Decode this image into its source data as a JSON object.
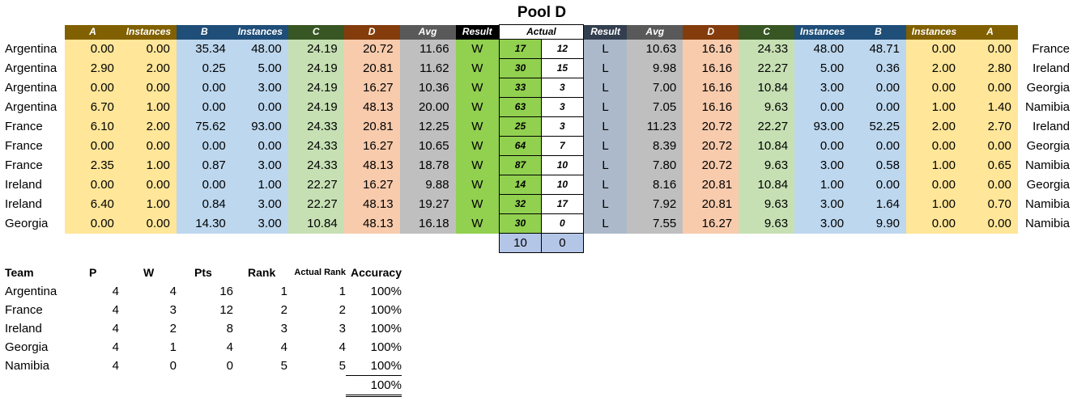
{
  "title": "Pool D",
  "headers": {
    "left": [
      "A",
      "Instances",
      "B",
      "Instances",
      "C",
      "D",
      "Avg",
      "Result"
    ],
    "actual": "Actual",
    "right": [
      "Result",
      "Avg",
      "D",
      "C",
      "Instances",
      "B",
      "Instances",
      "A"
    ]
  },
  "matches": [
    {
      "home": "Argentina",
      "hA": "0.00",
      "hAi": "0.00",
      "hB": "35.34",
      "hBi": "48.00",
      "hC": "24.19",
      "hD": "20.72",
      "hAvg": "11.66",
      "hRes": "W",
      "s1": "17",
      "s2": "12",
      "aRes": "L",
      "aAvg": "10.63",
      "aD": "16.16",
      "aC": "24.33",
      "aBi": "48.00",
      "aB": "48.71",
      "aAi": "0.00",
      "aA": "0.00",
      "away": "France"
    },
    {
      "home": "Argentina",
      "hA": "2.90",
      "hAi": "2.00",
      "hB": "0.25",
      "hBi": "5.00",
      "hC": "24.19",
      "hD": "20.81",
      "hAvg": "11.62",
      "hRes": "W",
      "s1": "30",
      "s2": "15",
      "aRes": "L",
      "aAvg": "9.98",
      "aD": "16.16",
      "aC": "22.27",
      "aBi": "5.00",
      "aB": "0.36",
      "aAi": "2.00",
      "aA": "2.80",
      "away": "Ireland"
    },
    {
      "home": "Argentina",
      "hA": "0.00",
      "hAi": "0.00",
      "hB": "0.00",
      "hBi": "3.00",
      "hC": "24.19",
      "hD": "16.27",
      "hAvg": "10.36",
      "hRes": "W",
      "s1": "33",
      "s2": "3",
      "aRes": "L",
      "aAvg": "7.00",
      "aD": "16.16",
      "aC": "10.84",
      "aBi": "3.00",
      "aB": "0.00",
      "aAi": "0.00",
      "aA": "0.00",
      "away": "Georgia"
    },
    {
      "home": "Argentina",
      "hA": "6.70",
      "hAi": "1.00",
      "hB": "0.00",
      "hBi": "0.00",
      "hC": "24.19",
      "hD": "48.13",
      "hAvg": "20.00",
      "hRes": "W",
      "s1": "63",
      "s2": "3",
      "aRes": "L",
      "aAvg": "7.05",
      "aD": "16.16",
      "aC": "9.63",
      "aBi": "0.00",
      "aB": "0.00",
      "aAi": "1.00",
      "aA": "1.40",
      "away": "Namibia"
    },
    {
      "home": "France",
      "hA": "6.10",
      "hAi": "2.00",
      "hB": "75.62",
      "hBi": "93.00",
      "hC": "24.33",
      "hD": "20.81",
      "hAvg": "12.25",
      "hRes": "W",
      "s1": "25",
      "s2": "3",
      "aRes": "L",
      "aAvg": "11.23",
      "aD": "20.72",
      "aC": "22.27",
      "aBi": "93.00",
      "aB": "52.25",
      "aAi": "2.00",
      "aA": "2.70",
      "away": "Ireland"
    },
    {
      "home": "France",
      "hA": "0.00",
      "hAi": "0.00",
      "hB": "0.00",
      "hBi": "0.00",
      "hC": "24.33",
      "hD": "16.27",
      "hAvg": "10.65",
      "hRes": "W",
      "s1": "64",
      "s2": "7",
      "aRes": "L",
      "aAvg": "8.39",
      "aD": "20.72",
      "aC": "10.84",
      "aBi": "0.00",
      "aB": "0.00",
      "aAi": "0.00",
      "aA": "0.00",
      "away": "Georgia"
    },
    {
      "home": "France",
      "hA": "2.35",
      "hAi": "1.00",
      "hB": "0.87",
      "hBi": "3.00",
      "hC": "24.33",
      "hD": "48.13",
      "hAvg": "18.78",
      "hRes": "W",
      "s1": "87",
      "s2": "10",
      "aRes": "L",
      "aAvg": "7.80",
      "aD": "20.72",
      "aC": "9.63",
      "aBi": "3.00",
      "aB": "0.58",
      "aAi": "1.00",
      "aA": "0.65",
      "away": "Namibia"
    },
    {
      "home": "Ireland",
      "hA": "0.00",
      "hAi": "0.00",
      "hB": "0.00",
      "hBi": "1.00",
      "hC": "22.27",
      "hD": "16.27",
      "hAvg": "9.88",
      "hRes": "W",
      "s1": "14",
      "s2": "10",
      "aRes": "L",
      "aAvg": "8.16",
      "aD": "20.81",
      "aC": "10.84",
      "aBi": "1.00",
      "aB": "0.00",
      "aAi": "0.00",
      "aA": "0.00",
      "away": "Georgia"
    },
    {
      "home": "Ireland",
      "hA": "6.40",
      "hAi": "1.00",
      "hB": "0.84",
      "hBi": "3.00",
      "hC": "22.27",
      "hD": "48.13",
      "hAvg": "19.27",
      "hRes": "W",
      "s1": "32",
      "s2": "17",
      "aRes": "L",
      "aAvg": "7.92",
      "aD": "20.81",
      "aC": "9.63",
      "aBi": "3.00",
      "aB": "1.64",
      "aAi": "1.00",
      "aA": "0.70",
      "away": "Namibia"
    },
    {
      "home": "Georgia",
      "hA": "0.00",
      "hAi": "0.00",
      "hB": "14.30",
      "hBi": "3.00",
      "hC": "10.84",
      "hD": "48.13",
      "hAvg": "16.18",
      "hRes": "W",
      "s1": "30",
      "s2": "0",
      "aRes": "L",
      "aAvg": "7.55",
      "aD": "16.27",
      "aC": "9.63",
      "aBi": "3.00",
      "aB": "9.90",
      "aAi": "0.00",
      "aA": "0.00",
      "away": "Namibia"
    }
  ],
  "totals": {
    "left": "10",
    "right": "0"
  },
  "standings": {
    "headers": [
      "Team",
      "P",
      "W",
      "Pts",
      "Rank",
      "Actual Rank",
      "Accuracy"
    ],
    "rows": [
      {
        "team": "Argentina",
        "p": "4",
        "w": "4",
        "pts": "16",
        "rank": "1",
        "actual": "1",
        "acc": "100%"
      },
      {
        "team": "France",
        "p": "4",
        "w": "3",
        "pts": "12",
        "rank": "2",
        "actual": "2",
        "acc": "100%"
      },
      {
        "team": "Ireland",
        "p": "4",
        "w": "2",
        "pts": "8",
        "rank": "3",
        "actual": "3",
        "acc": "100%"
      },
      {
        "team": "Georgia",
        "p": "4",
        "w": "1",
        "pts": "4",
        "rank": "4",
        "actual": "4",
        "acc": "100%"
      },
      {
        "team": "Namibia",
        "p": "4",
        "w": "0",
        "pts": "0",
        "rank": "5",
        "actual": "5",
        "acc": "100%"
      }
    ],
    "total_accuracy": "100%"
  }
}
